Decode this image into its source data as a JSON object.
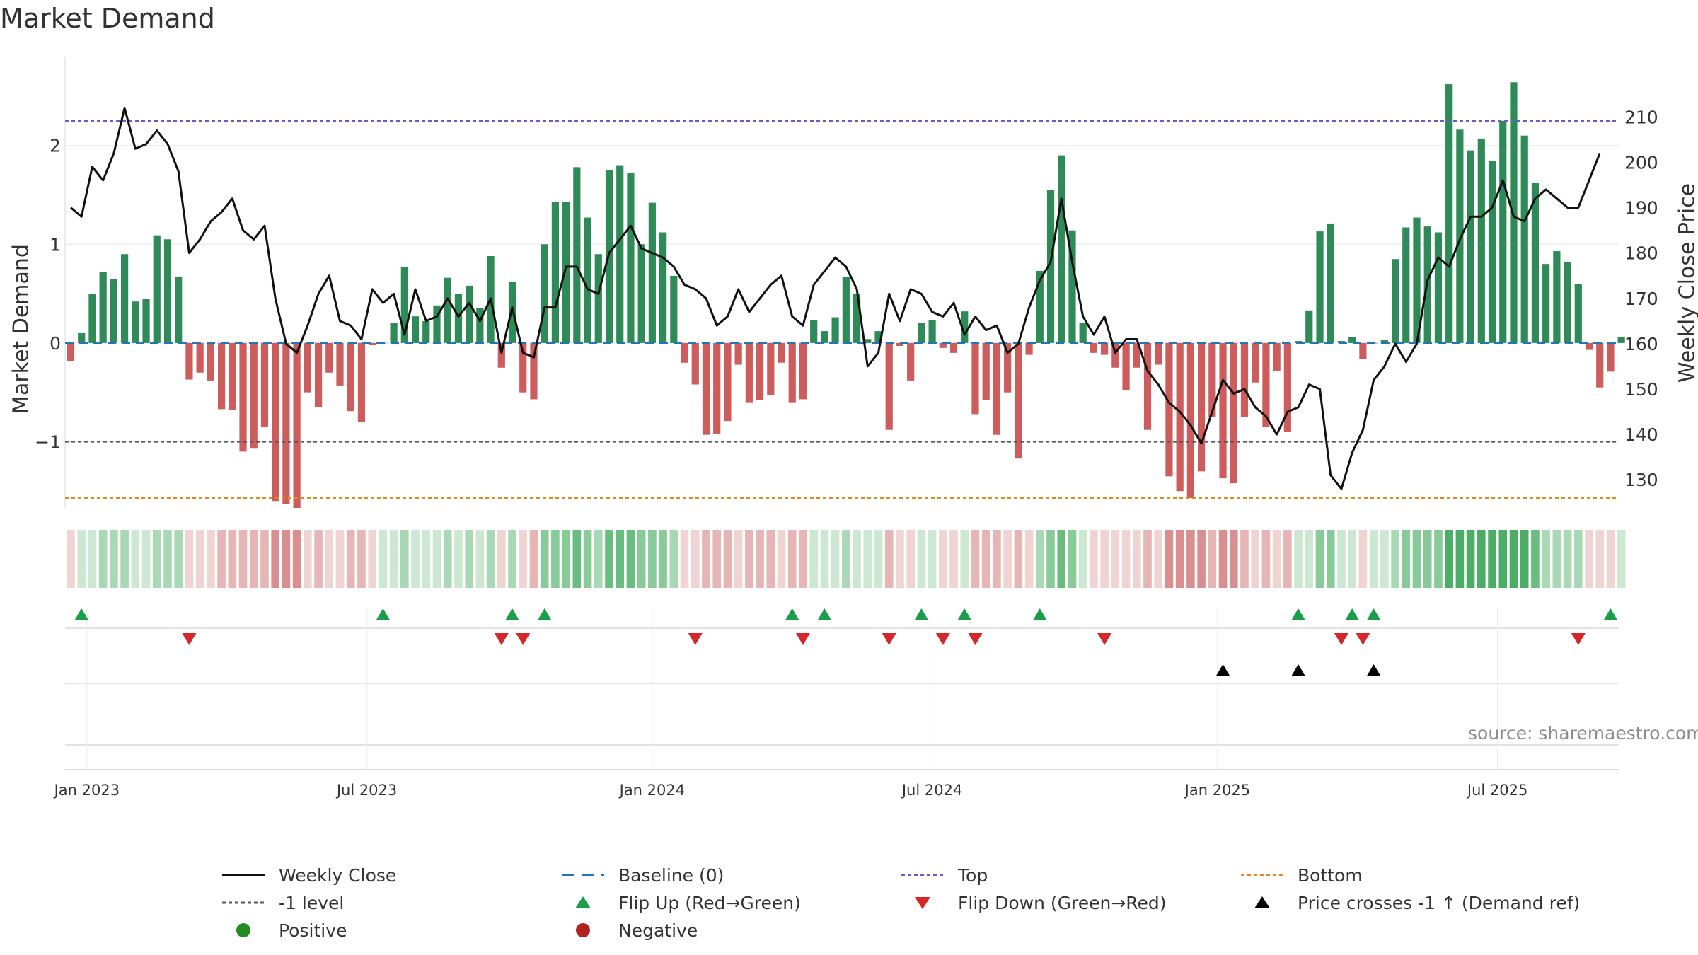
{
  "colors": {
    "positive": "#2e8b57",
    "negative": "#cd5c5c",
    "line": "#111111",
    "baseline": "#1f77b4",
    "top": "#6a5acd",
    "minus1": "#555566",
    "bottom": "#e08a1e",
    "flip_up": "#1a9e4a",
    "flip_down": "#d62728",
    "cross": "#000000",
    "legend_positive": "#228b22",
    "legend_negative": "#b22222"
  },
  "chart_data": {
    "type": "bar",
    "title": "Market Demand",
    "ylabel": "Market Demand",
    "ylabel_right": "Weekly Close Price",
    "ylim": [
      -1.67,
      2.9
    ],
    "ylim_right": [
      123.8,
      223.3
    ],
    "yticks_left": [
      {
        "v": 2,
        "label": "2"
      },
      {
        "v": 1,
        "label": "1"
      },
      {
        "v": 0,
        "label": "0"
      },
      {
        "v": -1,
        "label": "−1"
      }
    ],
    "yticks_right": [
      {
        "v": 210,
        "label": "210"
      },
      {
        "v": 200,
        "label": "200"
      },
      {
        "v": 190,
        "label": "190"
      },
      {
        "v": 180,
        "label": "180"
      },
      {
        "v": 170,
        "label": "170"
      },
      {
        "v": 160,
        "label": "160"
      },
      {
        "v": 150,
        "label": "150"
      },
      {
        "v": 140,
        "label": "140"
      },
      {
        "v": 130,
        "label": "130"
      }
    ],
    "xticks": [
      {
        "i": 1.5,
        "label": "Jan 2023"
      },
      {
        "i": 27.5,
        "label": "Jul 2023"
      },
      {
        "i": 54,
        "label": "Jan 2024"
      },
      {
        "i": 80,
        "label": "Jul 2024"
      },
      {
        "i": 106.5,
        "label": "Jan 2025"
      },
      {
        "i": 132.5,
        "label": "Jul 2025"
      }
    ],
    "reference_lines": {
      "baseline": 0,
      "top": 2.25,
      "minus1_level": -1,
      "bottom": -1.57
    },
    "demand": [
      -0.18,
      0.1,
      0.5,
      0.72,
      0.65,
      0.9,
      0.42,
      0.45,
      1.09,
      1.05,
      0.67,
      -0.37,
      -0.3,
      -0.38,
      -0.67,
      -0.68,
      -1.1,
      -1.07,
      -0.85,
      -1.6,
      -1.63,
      -1.67,
      -0.5,
      -0.65,
      -0.3,
      -0.43,
      -0.69,
      -0.8,
      -0.02,
      0.0,
      0.2,
      0.77,
      0.27,
      0.22,
      0.38,
      0.66,
      0.5,
      0.58,
      0.35,
      0.88,
      -0.25,
      0.62,
      -0.5,
      -0.57,
      1.0,
      1.43,
      1.43,
      1.78,
      1.27,
      0.9,
      1.75,
      1.8,
      1.72,
      1.0,
      1.42,
      1.12,
      0.68,
      -0.2,
      -0.42,
      -0.93,
      -0.92,
      -0.79,
      -0.22,
      -0.6,
      -0.58,
      -0.53,
      -0.2,
      -0.6,
      -0.57,
      0.23,
      0.12,
      0.26,
      0.67,
      0.5,
      0.04,
      0.12,
      -0.88,
      -0.03,
      -0.38,
      0.2,
      0.23,
      -0.05,
      -0.1,
      0.32,
      -0.72,
      -0.58,
      -0.93,
      -0.5,
      -1.17,
      -0.12,
      0.73,
      1.55,
      1.9,
      1.14,
      0.2,
      -0.1,
      -0.12,
      -0.25,
      -0.48,
      -0.25,
      -0.88,
      -0.22,
      -1.35,
      -1.5,
      -1.57,
      -1.3,
      -0.75,
      -1.37,
      -1.42,
      -0.75,
      -0.4,
      -0.85,
      -0.28,
      -0.9,
      0.02,
      0.33,
      1.13,
      1.21,
      0.02,
      0.06,
      -0.16,
      0.0,
      0.03,
      0.85,
      1.17,
      1.27,
      1.18,
      1.12,
      2.62,
      2.16,
      1.95,
      2.07,
      1.84,
      2.25,
      2.64,
      2.1,
      1.62,
      0.8,
      0.93,
      0.82,
      0.6,
      -0.07,
      -0.45,
      -0.29,
      0.06
    ],
    "weekly_close": [
      190,
      188,
      199,
      196,
      202,
      212,
      203,
      204,
      207,
      204,
      198,
      180,
      183,
      187,
      189,
      192,
      185,
      183,
      186,
      170,
      160,
      158,
      164,
      171,
      175,
      165,
      164,
      161,
      172,
      169,
      171,
      162,
      172,
      165,
      166,
      170,
      166,
      169,
      165,
      170,
      158,
      168,
      158,
      157,
      168,
      168,
      177,
      177,
      172,
      171,
      180,
      183,
      186,
      181,
      180,
      179,
      177,
      173,
      172,
      170,
      164,
      166,
      172,
      167,
      170,
      173,
      175,
      166,
      164,
      173,
      176,
      179,
      177,
      172,
      155,
      158,
      171,
      165,
      172,
      171,
      167,
      166,
      169,
      162,
      166,
      163,
      164,
      158,
      160,
      168,
      174,
      178,
      192,
      178,
      166,
      162,
      166,
      158,
      161,
      161,
      154,
      151,
      147,
      145,
      142,
      138,
      145,
      152,
      149,
      150,
      146,
      144,
      140,
      145,
      146,
      151,
      150,
      131,
      128,
      136,
      141,
      152,
      155,
      160,
      156,
      160,
      174,
      179,
      177,
      183,
      188,
      188,
      190,
      196,
      188,
      187,
      192,
      194,
      192,
      190,
      190,
      196,
      202
    ],
    "demand_strip": [
      -1,
      1,
      1,
      2,
      2,
      2,
      1,
      1,
      2,
      2,
      2,
      -1,
      -1,
      -1,
      -2,
      -2,
      -2,
      -2,
      -2,
      -3,
      -3,
      -3,
      -1,
      -2,
      -1,
      -1,
      -2,
      -2,
      -1,
      1,
      1,
      2,
      1,
      1,
      1,
      2,
      1,
      2,
      1,
      2,
      -1,
      2,
      -1,
      -2,
      3,
      3,
      3,
      4,
      3,
      2,
      4,
      4,
      4,
      3,
      3,
      3,
      2,
      -1,
      -1,
      -2,
      -2,
      -2,
      -1,
      -2,
      -2,
      -2,
      -1,
      -2,
      -2,
      1,
      1,
      1,
      2,
      1,
      1,
      1,
      -2,
      -1,
      -1,
      1,
      1,
      -1,
      -1,
      1,
      -2,
      -2,
      -2,
      -1,
      -2,
      -1,
      2,
      3,
      4,
      3,
      1,
      -1,
      -1,
      -1,
      -1,
      -1,
      -2,
      -1,
      -3,
      -3,
      -3,
      -3,
      -2,
      -3,
      -3,
      -2,
      -1,
      -2,
      -1,
      -2,
      1,
      1,
      3,
      3,
      1,
      1,
      -1,
      1,
      1,
      2,
      3,
      3,
      3,
      3,
      5,
      5,
      5,
      5,
      5,
      5,
      5,
      5,
      4,
      2,
      2,
      2,
      2,
      -1,
      -1,
      -1,
      1
    ],
    "flip_up_weeks": [
      1,
      29,
      41,
      44,
      67,
      70,
      79,
      83,
      90,
      114,
      119,
      121,
      143
    ],
    "flip_down_weeks": [
      11,
      40,
      42,
      58,
      68,
      76,
      81,
      84,
      96,
      118,
      120,
      140
    ],
    "cross_up_weeks": [
      107,
      114,
      121
    ]
  },
  "source_note": "source: sharemaestro.com",
  "legend": [
    {
      "key": "line",
      "label": "Weekly Close"
    },
    {
      "key": "baseline",
      "label": "Baseline (0)"
    },
    {
      "key": "top",
      "label": "Top"
    },
    {
      "key": "bottom",
      "label": "Bottom"
    },
    {
      "key": "minus1",
      "label": "-1 level"
    },
    {
      "key": "flip_up",
      "label": "Flip Up (Red→Green)"
    },
    {
      "key": "flip_down",
      "label": "Flip Down (Green→Red)"
    },
    {
      "key": "cross",
      "label": "Price crosses -1 ↑ (Demand ref)"
    },
    {
      "key": "positive",
      "label": "Positive"
    },
    {
      "key": "negative",
      "label": "Negative"
    }
  ]
}
